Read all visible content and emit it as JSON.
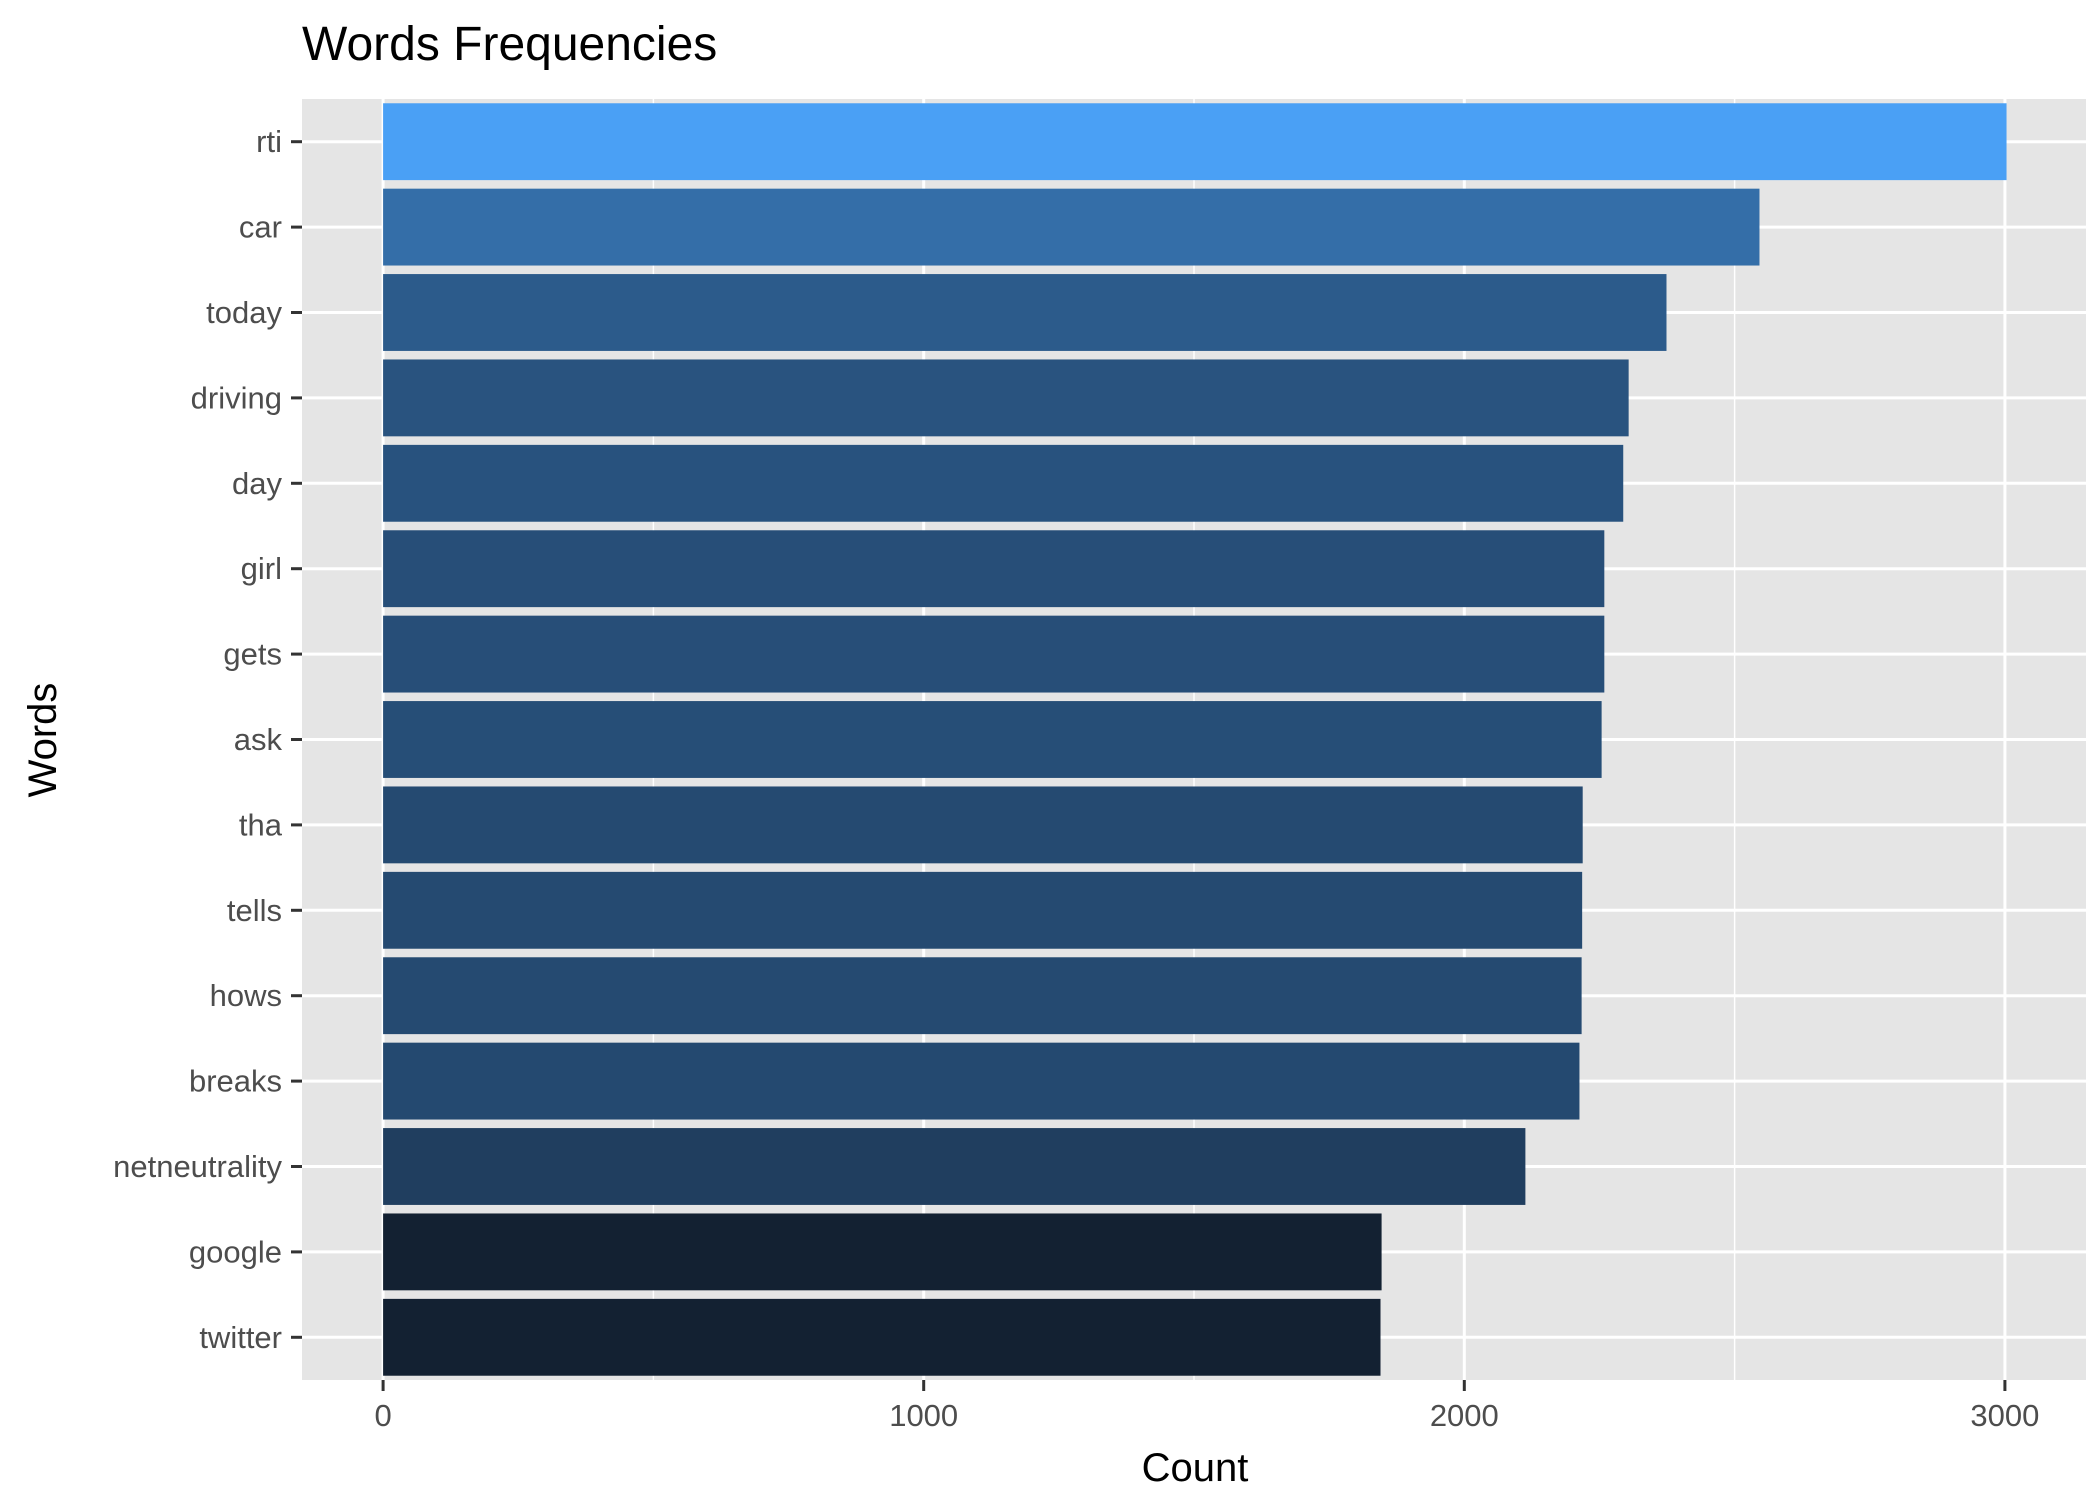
{
  "chart_data": {
    "type": "bar",
    "orientation": "horizontal",
    "title": "Words Frequencies",
    "xlabel": "Count",
    "ylabel": "Words",
    "xlim": [
      -150,
      3150
    ],
    "x_ticks": [
      0,
      1000,
      2000,
      3000
    ],
    "x_tick_labels": [
      "0",
      "1000",
      "2000",
      "3000"
    ],
    "grid": true,
    "legend": "none",
    "categories": [
      "rti",
      "car",
      "today",
      "driving",
      "day",
      "girl",
      "gets",
      "ask",
      "tha",
      "tells",
      "hows",
      "breaks",
      "netneutrality",
      "google",
      "twitter"
    ],
    "values": [
      3003,
      2546,
      2374,
      2304,
      2294,
      2259,
      2259,
      2254,
      2219,
      2218,
      2217,
      2213,
      2113,
      1847,
      1845
    ],
    "colors": {
      "panel_background": "#e5e5e5",
      "grid": "#ffffff",
      "fill_low": "#132132",
      "fill_high": "#4aa0f5"
    }
  }
}
